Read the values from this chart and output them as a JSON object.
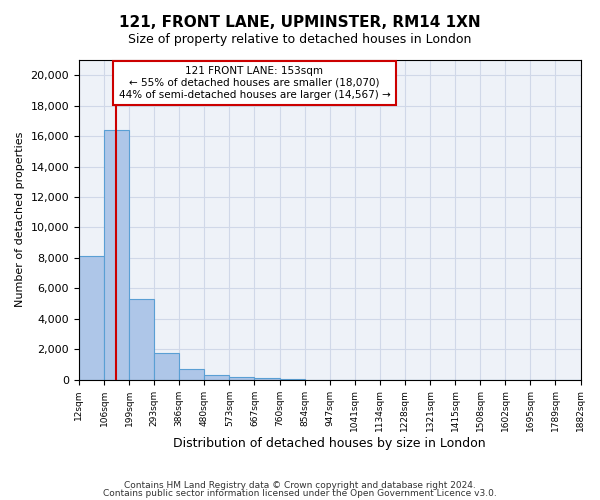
{
  "title_line1": "121, FRONT LANE, UPMINSTER, RM14 1XN",
  "title_line2": "Size of property relative to detached houses in London",
  "xlabel": "Distribution of detached houses by size in London",
  "ylabel": "Number of detached properties",
  "bar_color": "#aec6e8",
  "bar_edge_color": "#5a9fd4",
  "grid_color": "#d0d8e8",
  "background_color": "#eef2f8",
  "annotation_box_color": "#ffffff",
  "annotation_border_color": "#cc0000",
  "red_line_color": "#cc0000",
  "tick_labels": [
    "12sqm",
    "106sqm",
    "199sqm",
    "293sqm",
    "386sqm",
    "480sqm",
    "573sqm",
    "667sqm",
    "760sqm",
    "854sqm",
    "947sqm",
    "1041sqm",
    "1134sqm",
    "1228sqm",
    "1321sqm",
    "1415sqm",
    "1508sqm",
    "1602sqm",
    "1695sqm",
    "1789sqm",
    "1882sqm"
  ],
  "bar_values": [
    8100,
    16400,
    5300,
    1750,
    700,
    300,
    180,
    120,
    60,
    0,
    0,
    0,
    0,
    0,
    0,
    0,
    0,
    0,
    0,
    0
  ],
  "ylim": [
    0,
    21000
  ],
  "yticks": [
    0,
    2000,
    4000,
    6000,
    8000,
    10000,
    12000,
    14000,
    16000,
    18000,
    20000
  ],
  "annotation_line1": "121 FRONT LANE: 153sqm",
  "annotation_line2": "← 55% of detached houses are smaller (18,070)",
  "annotation_line3": "44% of semi-detached houses are larger (14,567) →",
  "red_line_x": 1.47,
  "footer_line1": "Contains HM Land Registry data © Crown copyright and database right 2024.",
  "footer_line2": "Contains public sector information licensed under the Open Government Licence v3.0.",
  "n_bars": 20
}
